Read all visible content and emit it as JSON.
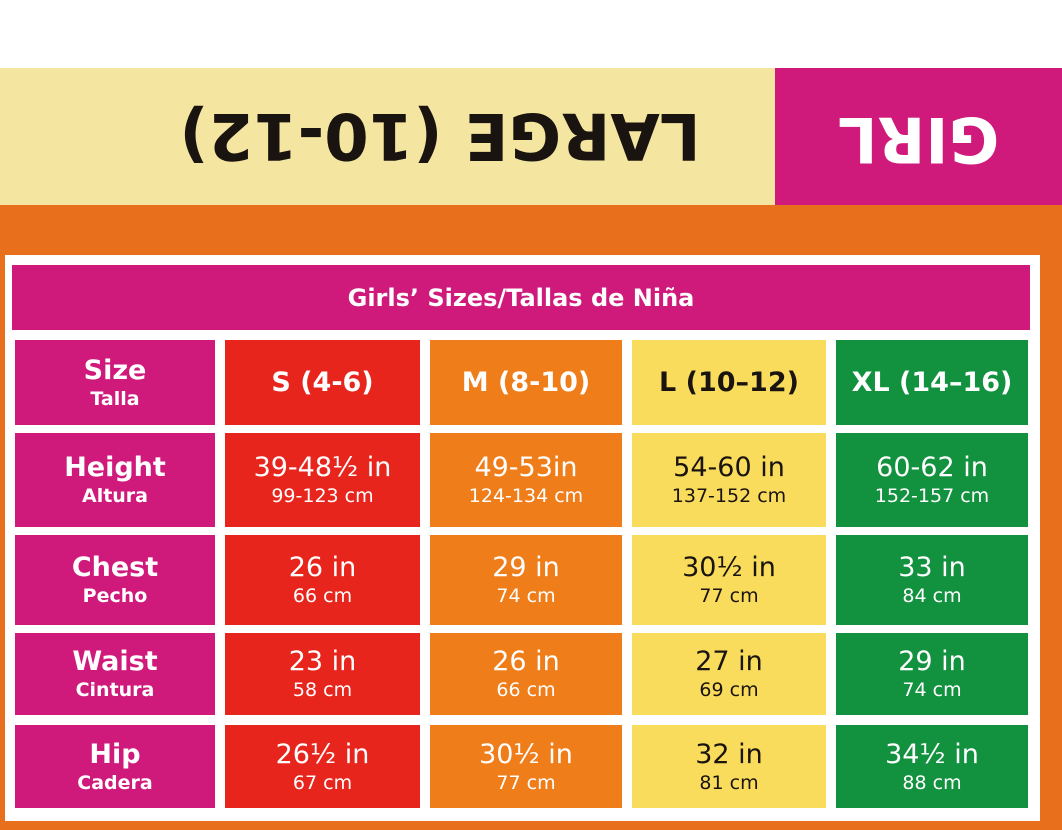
{
  "header": {
    "size_label": "LARGE (10-12)",
    "tag": "GIRL"
  },
  "table": {
    "title": "Girls’ Sizes/Tallas de Niña",
    "corner": {
      "label": "Size",
      "sublabel": "Talla"
    },
    "columns": [
      "S (4-6)",
      "M (8-10)",
      "L (10–12)",
      "XL (14–16)"
    ],
    "rows": [
      {
        "label": "Height",
        "sublabel": "Altura",
        "cells": [
          [
            "39-48½ in",
            "99-123 cm"
          ],
          [
            "49-53in",
            "124-134 cm"
          ],
          [
            "54-60 in",
            "137-152 cm"
          ],
          [
            "60-62 in",
            "152-157 cm"
          ]
        ]
      },
      {
        "label": "Chest",
        "sublabel": "Pecho",
        "cells": [
          [
            "26 in",
            "66 cm"
          ],
          [
            "29 in",
            "74 cm"
          ],
          [
            "30½ in",
            "77 cm"
          ],
          [
            "33 in",
            "84 cm"
          ]
        ]
      },
      {
        "label": "Waist",
        "sublabel": "Cintura",
        "cells": [
          [
            "23 in",
            "58 cm"
          ],
          [
            "26 in",
            "66 cm"
          ],
          [
            "27 in",
            "69 cm"
          ],
          [
            "29 in",
            "74 cm"
          ]
        ]
      },
      {
        "label": "Hip",
        "sublabel": "Cadera",
        "cells": [
          [
            "26½ in",
            "67 cm"
          ],
          [
            "30½ in",
            "77 cm"
          ],
          [
            "32 in",
            "81 cm"
          ],
          [
            "34½ in",
            "88 cm"
          ]
        ]
      }
    ]
  }
}
